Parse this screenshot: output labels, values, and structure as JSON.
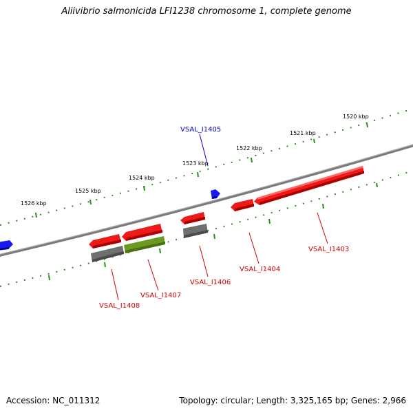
{
  "title": "Aliivibrio salmonicida LFI1238 chromosome 1, complete genome",
  "footer": {
    "accession": "Accession: NC_011312",
    "summary": "Topology: circular; Length: 3,325,165 bp; Genes: 2,966"
  },
  "scale_labels": [
    "1520 kbp",
    "1521 kbp",
    "1522 kbp",
    "1523 kbp",
    "1524 kbp",
    "1525 kbp",
    "1526 kbp"
  ],
  "genes": [
    {
      "label": "VSAL_I1405",
      "color": "#0000cc"
    },
    {
      "label": "VSAL_I1403",
      "color": "#cc0000"
    },
    {
      "label": "VSAL_I1404",
      "color": "#cc0000"
    },
    {
      "label": "VSAL_I1406",
      "color": "#cc0000"
    },
    {
      "label": "VSAL_I1407",
      "color": "#cc0000"
    },
    {
      "label": "VSAL_I1408",
      "color": "#cc0000"
    }
  ],
  "colors": {
    "backbone": "#7a7a7a",
    "ticks": "#2e8b20",
    "forward_gene": "#ee0000",
    "reverse_gene_blue": "#0000ee",
    "gray_feature": "#707070",
    "olive_feature": "#6a9a20"
  }
}
